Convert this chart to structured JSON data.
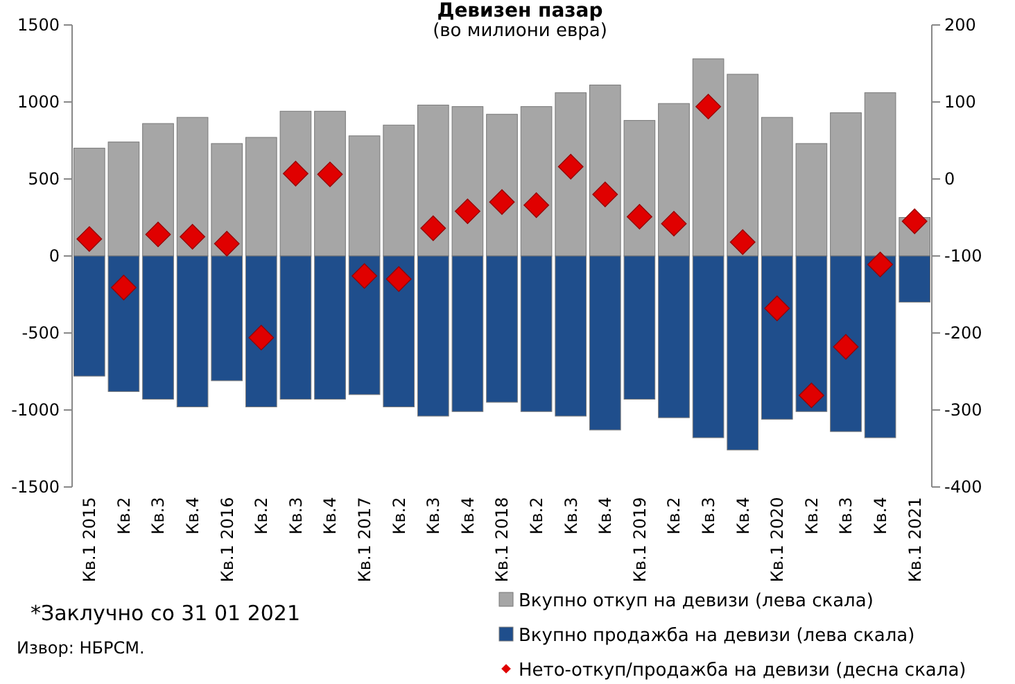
{
  "chart_data": {
    "type": "bar",
    "title": "Девизен пазар",
    "subtitle": "(во милиони евра)",
    "categories": [
      "Кв.1 2015",
      "Кв.2",
      "Кв.3",
      "Кв.4",
      "Кв.1 2016",
      "Кв.2",
      "Кв.3",
      "Кв.4",
      "Кв.1 2017",
      "Кв.2",
      "Кв.3",
      "Кв.4",
      "Кв.1 2018",
      "Кв.2",
      "Кв.3",
      "Кв.4",
      "Кв.1 2019",
      "Кв.2",
      "Кв.3",
      "Кв.4",
      "Кв.1 2020",
      "Кв.2",
      "Кв.3",
      "Кв.4",
      "Кв.1 2021"
    ],
    "series": [
      {
        "name": "Вкупно откуп на девизи (лева скала)",
        "color": "#a6a6a6",
        "values": [
          700,
          740,
          860,
          900,
          730,
          770,
          940,
          940,
          780,
          850,
          980,
          970,
          920,
          970,
          1060,
          1110,
          880,
          990,
          1280,
          1180,
          900,
          730,
          930,
          1060,
          250
        ]
      },
      {
        "name": "Вкупно продажба на девизи (лева скала)",
        "color": "#1f4e8c",
        "values": [
          -780,
          -880,
          -930,
          -980,
          -810,
          -980,
          -930,
          -930,
          -900,
          -980,
          -1040,
          -1010,
          -950,
          -1010,
          -1040,
          -1130,
          -930,
          -1050,
          -1180,
          -1260,
          -1060,
          -1010,
          -1140,
          -1180,
          -300
        ]
      },
      {
        "name": "Нето-откуп/продажба на девизи (десна скала)",
        "color": "#e00000",
        "type": "scatter",
        "axis": "y2",
        "marker": "diamond",
        "values": [
          -78,
          -141,
          -72,
          -75,
          -84,
          -206,
          7,
          6,
          -126,
          -130,
          -64,
          -42,
          -30,
          -34,
          16,
          -20,
          -49,
          -58,
          94,
          -82,
          -168,
          -281,
          -218,
          -111,
          -55
        ]
      }
    ],
    "ylim": [
      -1500,
      1500
    ],
    "yticks": [
      -1500,
      -1000,
      -500,
      0,
      500,
      1000,
      1500
    ],
    "y2lim": [
      -400,
      200
    ],
    "y2ticks": [
      -400,
      -300,
      -200,
      -100,
      0,
      100,
      200
    ],
    "legend": "bottom right",
    "stacked": true,
    "annotations": [
      "*Заклучно со 31 01 2021",
      "Извор: НБРСМ."
    ]
  }
}
